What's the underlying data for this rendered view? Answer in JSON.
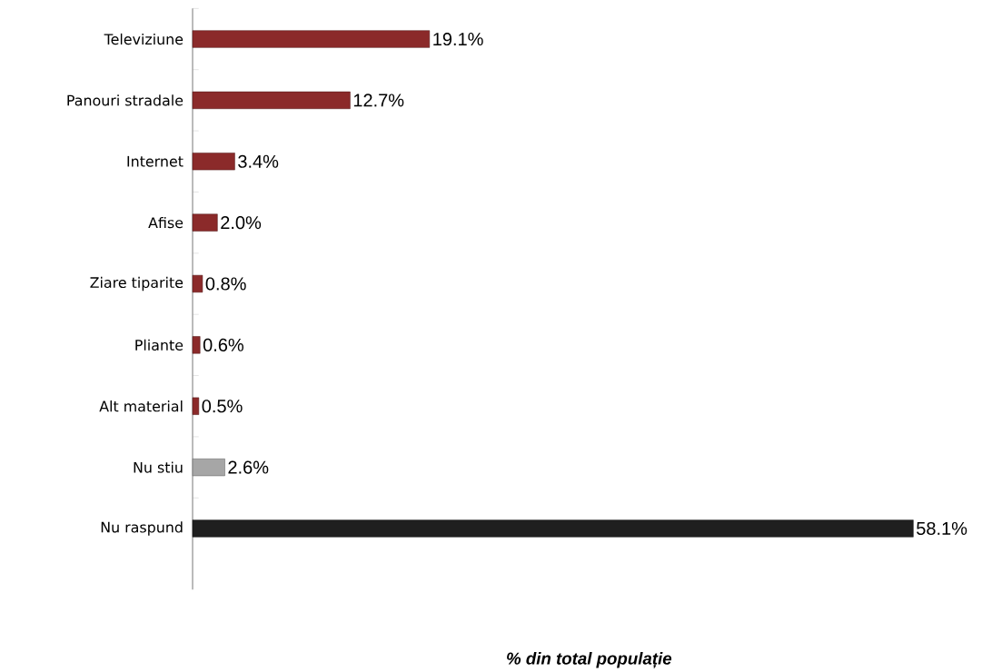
{
  "chart_data": {
    "type": "bar",
    "orientation": "horizontal",
    "xlabel": "% din total populație",
    "categories": [
      "Televiziune",
      "Panouri stradale",
      "Internet",
      "Afise",
      "Ziare tiparite",
      "Pliante",
      "Alt material",
      "Nu stiu",
      "Nu raspund"
    ],
    "values": [
      19.1,
      12.7,
      3.4,
      2.0,
      0.8,
      0.6,
      0.5,
      2.6,
      58.1
    ],
    "value_labels": [
      "19.1%",
      "12.7%",
      "3.4%",
      "2.0%",
      "0.8%",
      "0.6%",
      "0.5%",
      "2.6%",
      "58.1%"
    ],
    "colors": [
      "#8b2a2a",
      "#8b2a2a",
      "#8b2a2a",
      "#8b2a2a",
      "#8b2a2a",
      "#8b2a2a",
      "#8b2a2a",
      "#a6a6a6",
      "#1f1f1f"
    ],
    "grid": false
  }
}
